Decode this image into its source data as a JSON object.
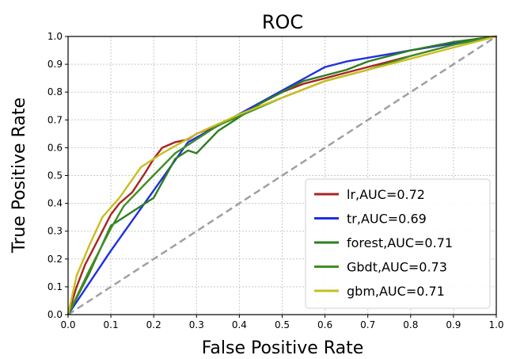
{
  "chart_data": {
    "type": "line",
    "title": "ROC",
    "xlabel": "False Positive Rate",
    "ylabel": "True Positive Rate",
    "xlim": [
      0.0,
      1.0
    ],
    "ylim": [
      0.0,
      1.0
    ],
    "xticks": [
      "0.0",
      "0.1",
      "0.2",
      "0.3",
      "0.4",
      "0.5",
      "0.6",
      "0.7",
      "0.8",
      "0.9",
      "1.0"
    ],
    "yticks": [
      "0.0",
      "0.1",
      "0.2",
      "0.3",
      "0.4",
      "0.5",
      "0.6",
      "0.7",
      "0.8",
      "0.9",
      "1.0"
    ],
    "grid": true,
    "legend_position": "bottom-right",
    "series": [
      {
        "name": "lr,AUC=0.72",
        "color": "#a82523",
        "x": [
          0.0,
          0.02,
          0.04,
          0.06,
          0.08,
          0.1,
          0.12,
          0.15,
          0.18,
          0.2,
          0.22,
          0.25,
          0.28,
          0.3,
          0.35,
          0.4,
          0.45,
          0.5,
          0.55,
          0.6,
          0.65,
          0.7,
          0.75,
          0.8,
          0.85,
          0.9,
          0.95,
          1.0
        ],
        "y": [
          0.0,
          0.1,
          0.18,
          0.24,
          0.3,
          0.36,
          0.4,
          0.44,
          0.51,
          0.56,
          0.6,
          0.62,
          0.63,
          0.65,
          0.68,
          0.72,
          0.76,
          0.8,
          0.83,
          0.85,
          0.87,
          0.89,
          0.91,
          0.93,
          0.95,
          0.97,
          0.99,
          1.0
        ]
      },
      {
        "name": "tr,AUC=0.69",
        "color": "#1f2fe0",
        "x": [
          0.0,
          0.1,
          0.28,
          0.6,
          0.65,
          0.8,
          1.0
        ],
        "y": [
          0.0,
          0.23,
          0.62,
          0.89,
          0.91,
          0.95,
          1.0
        ]
      },
      {
        "name": "forest,AUC=0.71",
        "color": "#2e7d1f",
        "x": [
          0.0,
          0.05,
          0.1,
          0.2,
          0.25,
          0.28,
          0.3,
          0.35,
          0.45,
          0.55,
          0.65,
          0.7,
          0.8,
          0.9,
          1.0
        ],
        "y": [
          0.0,
          0.15,
          0.32,
          0.42,
          0.56,
          0.59,
          0.58,
          0.66,
          0.76,
          0.84,
          0.88,
          0.91,
          0.95,
          0.98,
          1.0
        ]
      },
      {
        "name": "Gbdt,AUC=0.73",
        "color": "#3f8f22",
        "x": [
          0.0,
          0.05,
          0.1,
          0.13,
          0.18,
          0.25,
          0.35,
          0.5,
          0.6,
          0.7,
          0.8,
          0.9,
          1.0
        ],
        "y": [
          0.0,
          0.16,
          0.31,
          0.39,
          0.47,
          0.58,
          0.68,
          0.78,
          0.84,
          0.88,
          0.93,
          0.97,
          1.0
        ]
      },
      {
        "name": "gbm,AUC=0.71",
        "color": "#c9be21",
        "x": [
          0.0,
          0.02,
          0.05,
          0.08,
          0.12,
          0.17,
          0.22,
          0.3,
          0.4,
          0.5,
          0.6,
          0.7,
          0.8,
          0.9,
          1.0
        ],
        "y": [
          0.0,
          0.14,
          0.25,
          0.35,
          0.42,
          0.53,
          0.58,
          0.65,
          0.72,
          0.78,
          0.84,
          0.88,
          0.92,
          0.96,
          1.0
        ]
      }
    ],
    "reference_line": {
      "style": "dashed",
      "color": "#a0a0a0",
      "x": [
        0.0,
        1.0
      ],
      "y": [
        0.0,
        1.0
      ]
    }
  }
}
